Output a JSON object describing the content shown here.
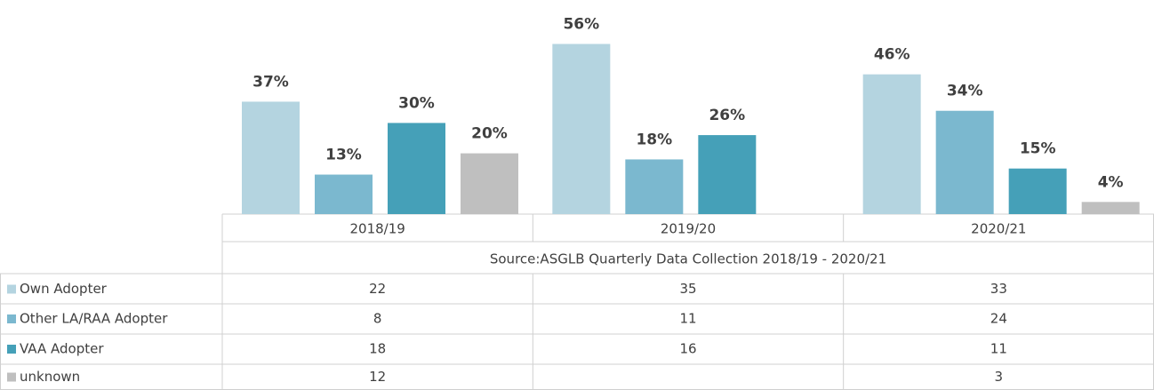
{
  "chart_data": {
    "type": "bar",
    "categories": [
      "2018/19",
      "2019/20",
      "2020/21"
    ],
    "source": "Source:ASGLB Quarterly Data Collection 2018/19 - 2020/21",
    "series": [
      {
        "name": "Own Adopter",
        "color": "#b4d4e0",
        "values": [
          37,
          56,
          46
        ],
        "value_labels": [
          "37%",
          "56%",
          "46%"
        ],
        "counts": [
          22,
          35,
          33
        ]
      },
      {
        "name": "Other LA/RAA Adopter",
        "color": "#7bb8cf",
        "values": [
          13,
          18,
          34
        ],
        "value_labels": [
          "13%",
          "18%",
          "34%"
        ],
        "counts": [
          8,
          11,
          24
        ]
      },
      {
        "name": "VAA Adopter",
        "color": "#45a0b8",
        "values": [
          30,
          26,
          15
        ],
        "value_labels": [
          "30%",
          "26%",
          "15%"
        ],
        "counts": [
          18,
          16,
          11
        ]
      },
      {
        "name": "unknown",
        "color": "#bfbfbf",
        "values": [
          20,
          null,
          4
        ],
        "value_labels": [
          "20%",
          null,
          "4%"
        ],
        "counts": [
          12,
          null,
          3
        ]
      }
    ]
  }
}
